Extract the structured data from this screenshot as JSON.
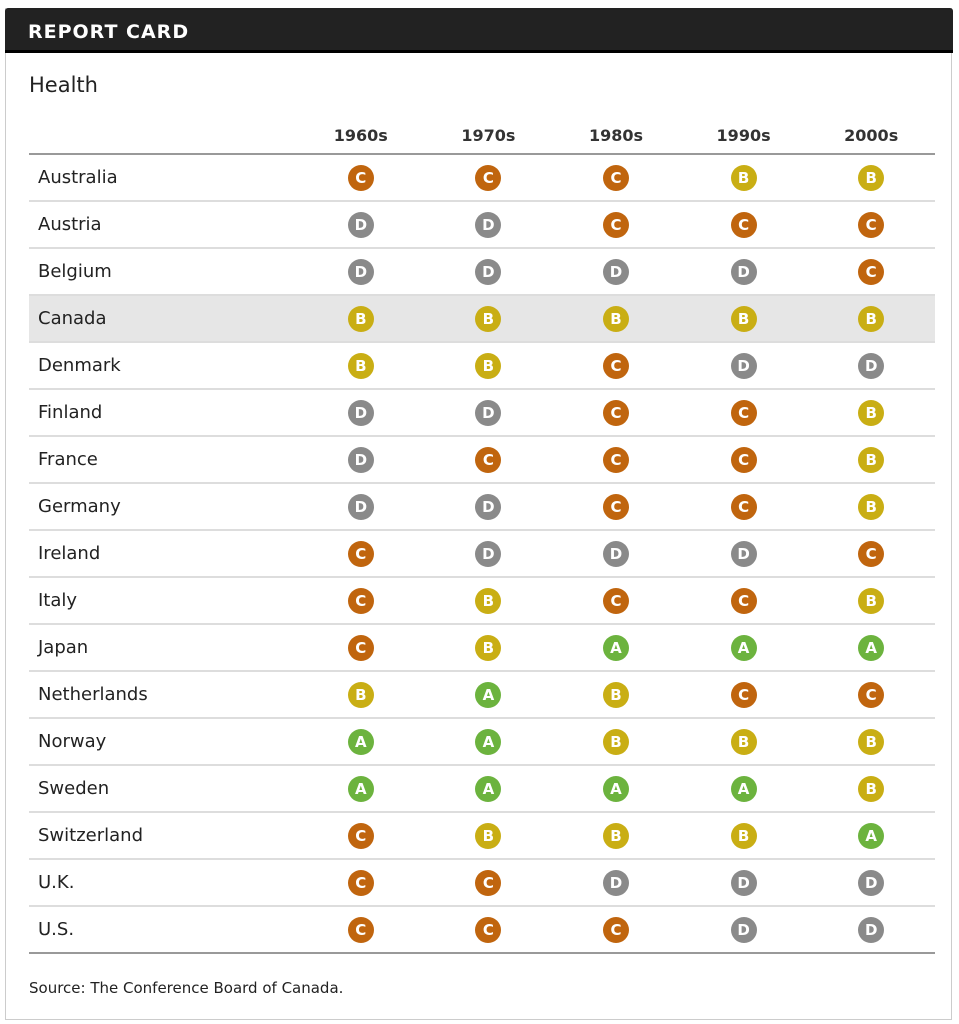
{
  "header": {
    "title": "REPORT CARD"
  },
  "section_title": "Health",
  "columns": [
    "1960s",
    "1970s",
    "1980s",
    "1990s",
    "2000s"
  ],
  "grade_colors": {
    "A": "#6cb33e",
    "B": "#c9ae14",
    "C": "#c0650e",
    "D": "#8a8a8a"
  },
  "highlighted_country": "Canada",
  "rows": [
    {
      "country": "Australia",
      "grades": [
        "C",
        "C",
        "C",
        "B",
        "B"
      ]
    },
    {
      "country": "Austria",
      "grades": [
        "D",
        "D",
        "C",
        "C",
        "C"
      ]
    },
    {
      "country": "Belgium",
      "grades": [
        "D",
        "D",
        "D",
        "D",
        "C"
      ]
    },
    {
      "country": "Canada",
      "grades": [
        "B",
        "B",
        "B",
        "B",
        "B"
      ]
    },
    {
      "country": "Denmark",
      "grades": [
        "B",
        "B",
        "C",
        "D",
        "D"
      ]
    },
    {
      "country": "Finland",
      "grades": [
        "D",
        "D",
        "C",
        "C",
        "B"
      ]
    },
    {
      "country": "France",
      "grades": [
        "D",
        "C",
        "C",
        "C",
        "B"
      ]
    },
    {
      "country": "Germany",
      "grades": [
        "D",
        "D",
        "C",
        "C",
        "B"
      ]
    },
    {
      "country": "Ireland",
      "grades": [
        "C",
        "D",
        "D",
        "D",
        "C"
      ]
    },
    {
      "country": "Italy",
      "grades": [
        "C",
        "B",
        "C",
        "C",
        "B"
      ]
    },
    {
      "country": "Japan",
      "grades": [
        "C",
        "B",
        "A",
        "A",
        "A"
      ]
    },
    {
      "country": "Netherlands",
      "grades": [
        "B",
        "A",
        "B",
        "C",
        "C"
      ]
    },
    {
      "country": "Norway",
      "grades": [
        "A",
        "A",
        "B",
        "B",
        "B"
      ]
    },
    {
      "country": "Sweden",
      "grades": [
        "A",
        "A",
        "A",
        "A",
        "B"
      ]
    },
    {
      "country": "Switzerland",
      "grades": [
        "C",
        "B",
        "B",
        "B",
        "A"
      ]
    },
    {
      "country": "U.K.",
      "grades": [
        "C",
        "C",
        "D",
        "D",
        "D"
      ]
    },
    {
      "country": "U.S.",
      "grades": [
        "C",
        "C",
        "C",
        "D",
        "D"
      ]
    }
  ],
  "source": "Source: The Conference Board of Canada."
}
